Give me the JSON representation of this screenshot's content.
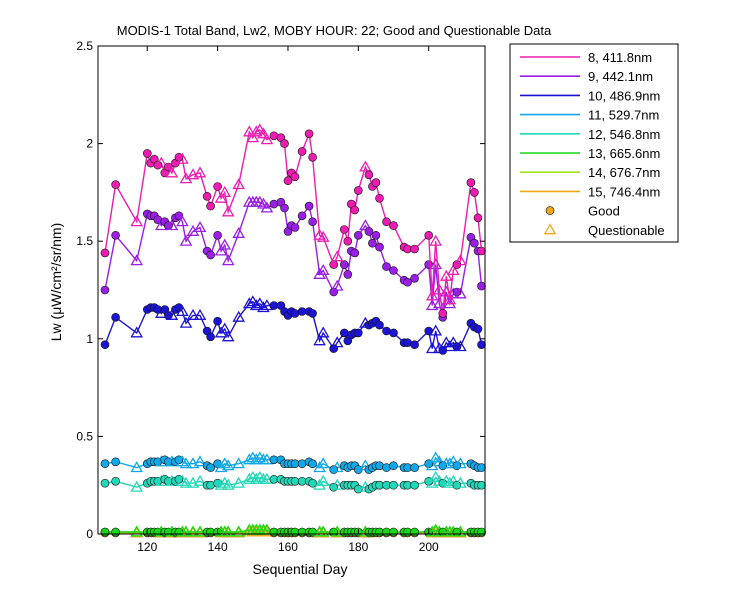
{
  "chart_data": {
    "type": "line",
    "title": "MODIS-1 Total Band,  Lw2, MOBY HOUR: 22;  Good and Questionable Data",
    "xlabel": "Sequential Day",
    "ylabel": "Lw (μW/cm²/sr/nm)",
    "xlim": [
      106,
      216
    ],
    "ylim": [
      0,
      2.5
    ],
    "xticks": [
      120,
      140,
      160,
      180,
      200
    ],
    "xtick_labels": [
      "120",
      "140",
      "160",
      "180",
      "200"
    ],
    "yticks": [
      0,
      0.5,
      1,
      1.5,
      2,
      2.5
    ],
    "ytick_labels": [
      "0",
      "0.5",
      "1",
      "1.5",
      "2",
      "2.5"
    ],
    "grid": false,
    "legend_position": "outside-right",
    "x": [
      108,
      111,
      117,
      120,
      121,
      122,
      123,
      124,
      125,
      126,
      127,
      128,
      129,
      130,
      131,
      133,
      135,
      137,
      138,
      140,
      141,
      142,
      143,
      146,
      149,
      150,
      151,
      152,
      153,
      154,
      156,
      158,
      159,
      160,
      161,
      162,
      164,
      166,
      167,
      169,
      170,
      173,
      174,
      176,
      177,
      178,
      179,
      180,
      182,
      183,
      184,
      185,
      186,
      188,
      190,
      193,
      194,
      196,
      200,
      201,
      202,
      203,
      204,
      205,
      206,
      207,
      208,
      209,
      212,
      213,
      214,
      215
    ],
    "series": [
      {
        "name": "8, 411.8nm",
        "color": "#ee1cb0",
        "values": [
          1.44,
          1.79,
          1.6,
          1.95,
          1.9,
          1.92,
          1.89,
          1.9,
          1.85,
          1.88,
          1.85,
          1.9,
          1.93,
          1.92,
          1.82,
          1.84,
          1.85,
          1.73,
          1.68,
          1.78,
          1.72,
          1.75,
          1.65,
          1.79,
          2.06,
          2.03,
          2.06,
          2.07,
          2.05,
          2.02,
          2.04,
          2.03,
          2.0,
          1.81,
          1.85,
          1.83,
          1.96,
          2.05,
          1.93,
          1.53,
          1.52,
          1.38,
          1.42,
          1.56,
          1.5,
          1.69,
          1.66,
          1.76,
          1.88,
          1.84,
          1.78,
          1.8,
          1.72,
          1.6,
          1.58,
          1.47,
          1.46,
          1.46,
          1.53,
          1.22,
          1.5,
          1.25,
          1.13,
          1.32,
          1.2,
          1.35,
          1.38,
          1.4,
          1.8,
          1.75,
          1.62,
          1.45
        ]
      },
      {
        "name": "9, 442.1nm",
        "color": "#9a1ee6",
        "values": [
          1.25,
          1.53,
          1.4,
          1.64,
          1.63,
          1.63,
          1.61,
          1.58,
          1.6,
          1.58,
          1.58,
          1.62,
          1.63,
          1.6,
          1.5,
          1.55,
          1.57,
          1.45,
          1.43,
          1.53,
          1.45,
          1.48,
          1.4,
          1.54,
          1.7,
          1.7,
          1.7,
          1.7,
          1.69,
          1.67,
          1.69,
          1.7,
          1.67,
          1.55,
          1.58,
          1.57,
          1.63,
          1.68,
          1.6,
          1.33,
          1.35,
          1.24,
          1.27,
          1.38,
          1.33,
          1.45,
          1.44,
          1.53,
          1.58,
          1.55,
          1.49,
          1.53,
          1.47,
          1.37,
          1.35,
          1.3,
          1.29,
          1.31,
          1.38,
          1.17,
          1.38,
          1.18,
          1.11,
          1.24,
          1.18,
          1.23,
          1.24,
          1.23,
          1.52,
          1.49,
          1.45,
          1.27
        ]
      },
      {
        "name": "10, 486.9nm",
        "color": "#1c14d2",
        "values": [
          0.97,
          1.11,
          1.03,
          1.15,
          1.16,
          1.16,
          1.15,
          1.13,
          1.15,
          1.12,
          1.12,
          1.15,
          1.16,
          1.14,
          1.08,
          1.12,
          1.12,
          1.04,
          1.01,
          1.09,
          1.03,
          1.05,
          1.01,
          1.11,
          1.18,
          1.19,
          1.17,
          1.18,
          1.16,
          1.17,
          1.17,
          1.17,
          1.14,
          1.12,
          1.14,
          1.13,
          1.14,
          1.14,
          1.13,
          0.99,
          1.03,
          0.95,
          0.98,
          1.03,
          0.99,
          1.02,
          1.03,
          1.03,
          1.08,
          1.07,
          1.08,
          1.09,
          1.07,
          1.04,
          1.03,
          0.98,
          0.98,
          0.97,
          1.04,
          0.95,
          1.04,
          0.95,
          0.94,
          0.98,
          0.96,
          0.98,
          0.96,
          0.96,
          1.08,
          1.06,
          1.05,
          0.97
        ]
      },
      {
        "name": "11, 529.7nm",
        "color": "#10a8e8",
        "values": [
          0.36,
          0.37,
          0.34,
          0.36,
          0.37,
          0.37,
          0.37,
          0.37,
          0.38,
          0.37,
          0.37,
          0.37,
          0.38,
          0.37,
          0.36,
          0.36,
          0.37,
          0.35,
          0.34,
          0.36,
          0.34,
          0.36,
          0.35,
          0.36,
          0.38,
          0.39,
          0.38,
          0.39,
          0.38,
          0.38,
          0.38,
          0.38,
          0.36,
          0.36,
          0.36,
          0.36,
          0.36,
          0.37,
          0.36,
          0.34,
          0.36,
          0.33,
          0.34,
          0.35,
          0.34,
          0.35,
          0.35,
          0.33,
          0.35,
          0.33,
          0.34,
          0.35,
          0.35,
          0.34,
          0.35,
          0.34,
          0.34,
          0.34,
          0.36,
          0.35,
          0.39,
          0.37,
          0.35,
          0.36,
          0.36,
          0.37,
          0.35,
          0.36,
          0.36,
          0.35,
          0.34,
          0.34
        ]
      },
      {
        "name": "12, 546.8nm",
        "color": "#22d8b8",
        "values": [
          0.26,
          0.27,
          0.24,
          0.26,
          0.27,
          0.27,
          0.27,
          0.27,
          0.28,
          0.27,
          0.27,
          0.27,
          0.28,
          0.27,
          0.26,
          0.26,
          0.27,
          0.25,
          0.25,
          0.26,
          0.25,
          0.26,
          0.25,
          0.26,
          0.28,
          0.29,
          0.28,
          0.29,
          0.28,
          0.28,
          0.28,
          0.28,
          0.27,
          0.27,
          0.27,
          0.27,
          0.27,
          0.27,
          0.26,
          0.25,
          0.27,
          0.24,
          0.25,
          0.25,
          0.25,
          0.25,
          0.25,
          0.23,
          0.24,
          0.23,
          0.24,
          0.25,
          0.25,
          0.25,
          0.25,
          0.25,
          0.25,
          0.25,
          0.27,
          0.26,
          0.29,
          0.27,
          0.26,
          0.27,
          0.26,
          0.27,
          0.25,
          0.26,
          0.26,
          0.25,
          0.25,
          0.25
        ]
      },
      {
        "name": "13, 665.6nm",
        "color": "#18d818",
        "values": [
          0.01,
          0.01,
          0.01,
          0.01,
          0.01,
          0.01,
          0.01,
          0.01,
          0.01,
          0.01,
          0.01,
          0.01,
          0.01,
          0.01,
          0.01,
          0.01,
          0.01,
          0.01,
          0.01,
          0.01,
          0.01,
          0.01,
          0.01,
          0.01,
          0.02,
          0.02,
          0.02,
          0.02,
          0.02,
          0.02,
          0.01,
          0.01,
          0.01,
          0.01,
          0.01,
          0.01,
          0.01,
          0.01,
          0.01,
          0.01,
          0.01,
          0.01,
          0.01,
          0.01,
          0.01,
          0.01,
          0.01,
          0.01,
          0.01,
          0.01,
          0.01,
          0.01,
          0.01,
          0.01,
          0.01,
          0.01,
          0.01,
          0.01,
          0.01,
          0.01,
          0.02,
          0.01,
          0.01,
          0.01,
          0.01,
          0.01,
          0.01,
          0.01,
          0.01,
          0.01,
          0.01,
          0.01
        ]
      },
      {
        "name": "14, 676.7nm",
        "color": "#a6e01c",
        "values": [
          0.01,
          0.01,
          0.01,
          0.01,
          0.01,
          0.01,
          0.01,
          0.01,
          0.01,
          0.01,
          0.01,
          0.01,
          0.01,
          0.01,
          0.01,
          0.01,
          0.01,
          0.01,
          0.01,
          0.01,
          0.01,
          0.01,
          0.01,
          0.01,
          0.02,
          0.02,
          0.02,
          0.02,
          0.02,
          0.02,
          0.01,
          0.01,
          0.01,
          0.01,
          0.01,
          0.01,
          0.01,
          0.01,
          0.01,
          0.01,
          0.01,
          0.01,
          0.01,
          0.01,
          0.01,
          0.01,
          0.01,
          0.01,
          0.01,
          0.01,
          0.01,
          0.01,
          0.01,
          0.01,
          0.01,
          0.01,
          0.01,
          0.01,
          0.01,
          0.01,
          0.02,
          0.01,
          0.01,
          0.01,
          0.01,
          0.01,
          0.01,
          0.01,
          0.01,
          0.01,
          0.01,
          0.01
        ]
      },
      {
        "name": "15, 746.4nm",
        "color": "#f0a818",
        "values": [
          0.005,
          0.005,
          0.005,
          0.005,
          0.005,
          0.005,
          0.005,
          0.005,
          0.005,
          0.005,
          0.005,
          0.005,
          0.005,
          0.005,
          0.005,
          0.005,
          0.005,
          0.005,
          0.005,
          0.005,
          0.005,
          0.005,
          0.005,
          0.005,
          0.01,
          0.01,
          0.01,
          0.01,
          0.01,
          0.01,
          0.005,
          0.005,
          0.005,
          0.005,
          0.005,
          0.005,
          0.005,
          0.005,
          0.005,
          0.005,
          0.005,
          0.005,
          0.005,
          0.005,
          0.005,
          0.005,
          0.005,
          0.005,
          0.005,
          0.005,
          0.005,
          0.005,
          0.005,
          0.005,
          0.005,
          0.005,
          0.005,
          0.005,
          0.005,
          0.005,
          0.01,
          0.005,
          0.005,
          0.005,
          0.005,
          0.005,
          0.005,
          0.005,
          0.005,
          0.005,
          0.005,
          0.005
        ]
      }
    ],
    "quality": [
      "G",
      "G",
      "Q",
      "G",
      "G",
      "G",
      "G",
      "Q",
      "G",
      "G",
      "Q",
      "G",
      "G",
      "Q",
      "Q",
      "Q",
      "Q",
      "G",
      "G",
      "G",
      "Q",
      "Q",
      "Q",
      "Q",
      "Q",
      "Q",
      "Q",
      "Q",
      "Q",
      "Q",
      "G",
      "G",
      "G",
      "G",
      "G",
      "G",
      "G",
      "G",
      "G",
      "Q",
      "Q",
      "G",
      "Q",
      "G",
      "G",
      "G",
      "G",
      "G",
      "Q",
      "G",
      "G",
      "G",
      "G",
      "G",
      "G",
      "G",
      "G",
      "G",
      "G",
      "Q",
      "Q",
      "Q",
      "G",
      "Q",
      "Q",
      "Q",
      "G",
      "Q",
      "G",
      "G",
      "G",
      "G"
    ],
    "markers": [
      {
        "name": "Good",
        "symbol": "circle",
        "color": "#f0a818"
      },
      {
        "name": "Questionable",
        "symbol": "triangle",
        "color": "#f0a818"
      }
    ]
  }
}
